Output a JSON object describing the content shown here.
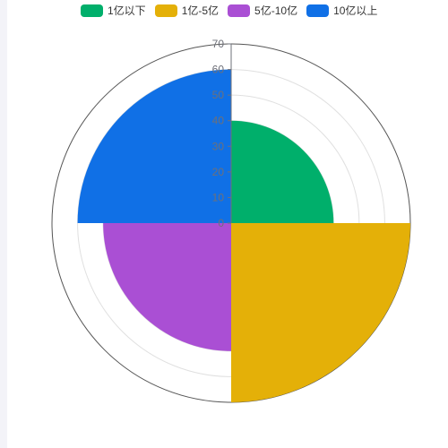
{
  "chart_data": {
    "type": "polar-bar",
    "title": "",
    "categories": [
      "1亿以下",
      "1亿-5亿",
      "5亿-10亿",
      "10亿以上"
    ],
    "values": [
      40,
      70,
      50,
      60
    ],
    "colors": [
      "#00af6b",
      "#e4b008",
      "#aa4fd4",
      "#1070e6"
    ],
    "radius_axis": {
      "min": 0,
      "max": 70,
      "ticks": [
        "0",
        "10",
        "20",
        "30",
        "40",
        "50",
        "60",
        "70"
      ]
    },
    "grid": true,
    "legend_position": "top"
  },
  "legend": {
    "items": [
      {
        "label": "1亿以下",
        "color": "#00af6b"
      },
      {
        "label": "1亿-5亿",
        "color": "#e4b008"
      },
      {
        "label": "5亿-10亿",
        "color": "#aa4fd4"
      },
      {
        "label": "10亿以上",
        "color": "#1070e6"
      }
    ]
  }
}
